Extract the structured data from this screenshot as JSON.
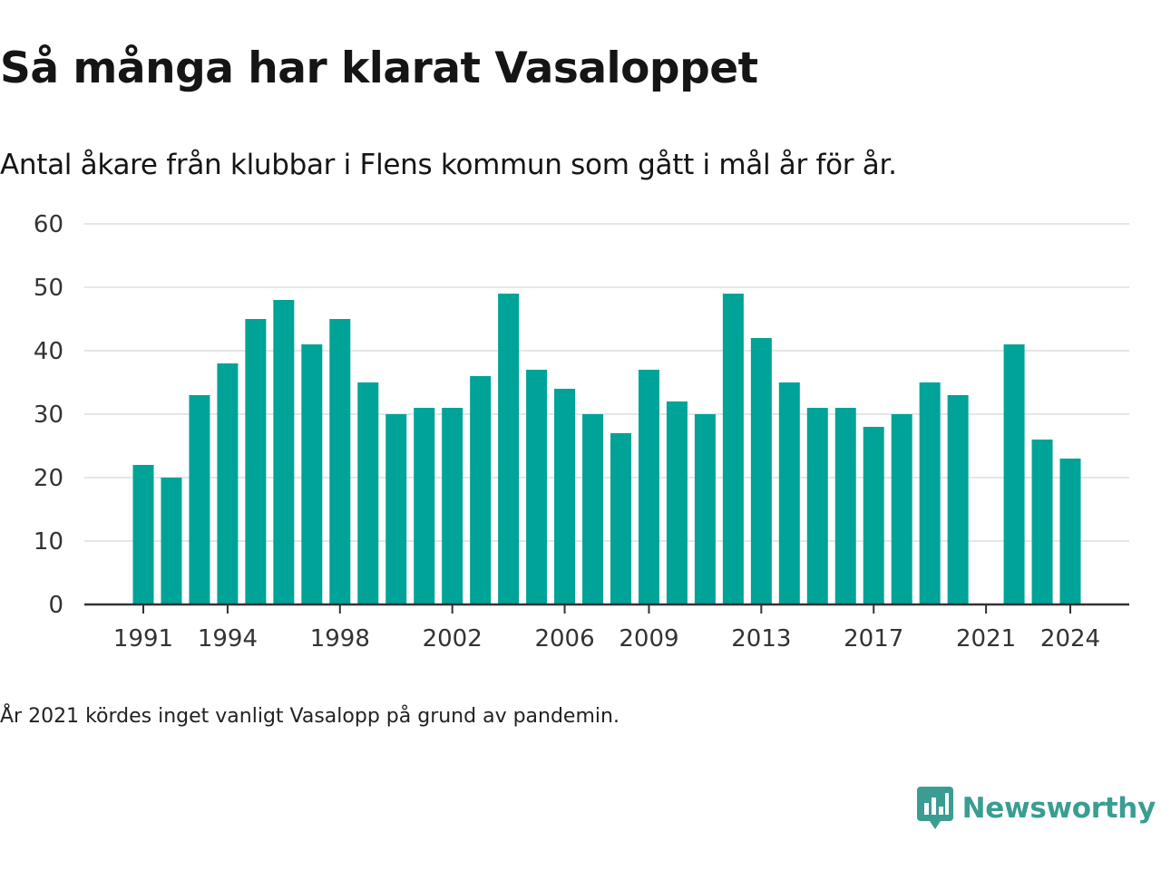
{
  "title": "Så många har klarat Vasaloppet",
  "subtitle": "Antal åkare från klubbar i Flens kommun som gått i mål år för år.",
  "note": "År 2021 kördes inget vanligt Vasalopp på grund av pandemin.",
  "brand": {
    "name": "Newsworthy",
    "icon": "newsworthy-logo-icon",
    "color": "#3a9d92"
  },
  "colors": {
    "bar": "#00a398",
    "grid": "#dddddd",
    "axis": "#333333"
  },
  "chart_data": {
    "type": "bar",
    "categories": [
      1991,
      1992,
      1993,
      1994,
      1995,
      1996,
      1997,
      1998,
      1999,
      2000,
      2001,
      2002,
      2003,
      2004,
      2005,
      2006,
      2007,
      2008,
      2009,
      2010,
      2011,
      2012,
      2013,
      2014,
      2015,
      2016,
      2017,
      2018,
      2019,
      2020,
      2021,
      2022,
      2023,
      2024
    ],
    "values": [
      22,
      20,
      33,
      38,
      45,
      48,
      41,
      45,
      35,
      30,
      31,
      31,
      36,
      49,
      37,
      34,
      30,
      27,
      37,
      32,
      30,
      49,
      42,
      35,
      31,
      31,
      28,
      30,
      35,
      33,
      null,
      41,
      26,
      23
    ],
    "x_tick_labels": [
      1991,
      1994,
      1998,
      2002,
      2006,
      2009,
      2013,
      2017,
      2021,
      2024
    ],
    "y_ticks": [
      0,
      10,
      20,
      30,
      40,
      50,
      60
    ],
    "ylim": [
      0,
      60
    ],
    "grid": true,
    "legend": "none"
  }
}
